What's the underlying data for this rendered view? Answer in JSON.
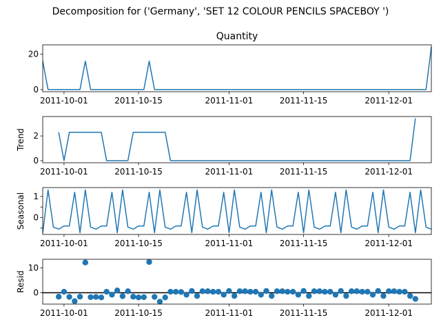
{
  "figure_title": "Decomposition for ('Germany', 'SET 12 COLOUR PENCILS SPACEBOY ')",
  "colors": {
    "series": "#1f77b4",
    "axis": "#000000",
    "zero_line": "#000000"
  },
  "chart_data": [
    {
      "type": "line",
      "title": "Quantity",
      "ylabel": "",
      "x_start": "2011-09-27",
      "x_end": "2011-12-09",
      "xlim": [
        "2011-09-27",
        "2011-12-09"
      ],
      "ylim": [
        -1.2,
        25.2
      ],
      "yticks": [
        0,
        20
      ],
      "xticks": [
        "2011-10-01",
        "2011-10-15",
        "2011-11-01",
        "2011-11-15",
        "2011-12-01"
      ],
      "grid": false,
      "values": [
        16,
        0,
        0,
        0,
        0,
        0,
        0,
        0,
        16,
        0,
        0,
        0,
        0,
        0,
        0,
        0,
        0,
        0,
        0,
        0,
        16,
        0,
        0,
        0,
        0,
        0,
        0,
        0,
        0,
        0,
        0,
        0,
        0,
        0,
        0,
        0,
        0,
        0,
        0,
        0,
        0,
        0,
        0,
        0,
        0,
        0,
        0,
        0,
        0,
        0,
        0,
        0,
        0,
        0,
        0,
        0,
        0,
        0,
        0,
        0,
        0,
        0,
        0,
        0,
        0,
        0,
        0,
        0,
        0,
        0,
        0,
        0,
        0,
        24
      ]
    },
    {
      "type": "line",
      "title": "",
      "ylabel": "Trend",
      "x_start": "2011-09-27",
      "x_end": "2011-12-09",
      "xlim": [
        "2011-09-27",
        "2011-12-09"
      ],
      "ylim": [
        -0.17,
        3.57
      ],
      "yticks": [
        0,
        2
      ],
      "xticks": [
        "2011-10-01",
        "2011-10-15",
        "2011-11-01",
        "2011-11-15",
        "2011-12-01"
      ],
      "grid": false,
      "values": [
        null,
        null,
        null,
        2.29,
        0,
        2.29,
        2.29,
        2.29,
        2.29,
        2.29,
        2.29,
        2.29,
        0,
        0,
        0,
        0,
        0,
        2.29,
        2.29,
        2.29,
        2.29,
        2.29,
        2.29,
        2.29,
        0,
        0,
        0,
        0,
        0,
        0,
        0,
        0,
        0,
        0,
        0,
        0,
        0,
        0,
        0,
        0,
        0,
        0,
        0,
        0,
        0,
        0,
        0,
        0,
        0,
        0,
        0,
        0,
        0,
        0,
        0,
        0,
        0,
        0,
        0,
        0,
        0,
        0,
        0,
        0,
        0,
        0,
        0,
        0,
        0,
        0,
        3.43,
        null,
        null,
        null
      ]
    },
    {
      "type": "line",
      "title": "",
      "ylabel": "Seasonal",
      "x_start": "2011-09-27",
      "x_end": "2011-12-09",
      "xlim": [
        "2011-09-27",
        "2011-12-09"
      ],
      "ylim": [
        -0.8,
        1.42
      ],
      "yticks": [
        -0.5,
        0,
        0.5,
        1
      ],
      "yticklabels": [
        "",
        "0",
        "",
        "1"
      ],
      "xticks": [
        "2011-10-01",
        "2011-10-15",
        "2011-11-01",
        "2011-11-15",
        "2011-12-01"
      ],
      "grid": false,
      "values": [
        -0.72,
        1.31,
        -0.45,
        -0.55,
        -0.4,
        -0.4,
        1.2,
        -0.72,
        1.31,
        -0.45,
        -0.55,
        -0.4,
        -0.4,
        1.2,
        -0.72,
        1.31,
        -0.45,
        -0.55,
        -0.4,
        -0.4,
        1.2,
        -0.72,
        1.31,
        -0.45,
        -0.55,
        -0.4,
        -0.4,
        1.2,
        -0.72,
        1.31,
        -0.45,
        -0.55,
        -0.4,
        -0.4,
        1.2,
        -0.72,
        1.31,
        -0.45,
        -0.55,
        -0.4,
        -0.4,
        1.2,
        -0.72,
        1.31,
        -0.45,
        -0.55,
        -0.4,
        -0.4,
        1.2,
        -0.72,
        1.31,
        -0.45,
        -0.55,
        -0.4,
        -0.4,
        1.2,
        -0.72,
        1.31,
        -0.45,
        -0.55,
        -0.4,
        -0.4,
        1.2,
        -0.72,
        1.31,
        -0.45,
        -0.55,
        -0.4,
        -0.4,
        1.2,
        -0.72,
        1.31,
        -0.45,
        -0.55
      ]
    },
    {
      "type": "scatter",
      "title": "",
      "ylabel": "Resid",
      "x_start": "2011-09-27",
      "x_end": "2011-12-09",
      "xlim": [
        "2011-09-27",
        "2011-12-09"
      ],
      "ylim": [
        -4.6,
        13.5
      ],
      "yticks": [
        0,
        10
      ],
      "xticks": [
        "2011-10-01",
        "2011-10-15",
        "2011-11-01",
        "2011-11-15",
        "2011-12-01"
      ],
      "grid": false,
      "zero_line": true,
      "values": [
        null,
        null,
        null,
        -1.6,
        0.4,
        -1.7,
        -3.4,
        -1.6,
        12.2,
        -1.8,
        -1.7,
        -1.9,
        0.4,
        -0.8,
        0.9,
        -1.4,
        0.6,
        -1.6,
        -1.9,
        -1.8,
        12.4,
        -1.7,
        -3.6,
        -1.9,
        0.4,
        0.4,
        0.3,
        -0.8,
        0.7,
        -1.3,
        0.6,
        0.6,
        0.4,
        0.4,
        -0.8,
        0.7,
        -1.3,
        0.6,
        0.6,
        0.4,
        0.4,
        -0.8,
        0.7,
        -1.3,
        0.6,
        0.6,
        0.4,
        0.4,
        -0.8,
        0.7,
        -1.3,
        0.6,
        0.6,
        0.4,
        0.4,
        -0.8,
        0.7,
        -1.3,
        0.6,
        0.6,
        0.4,
        0.4,
        -0.8,
        0.7,
        -1.3,
        0.6,
        0.6,
        0.4,
        0.4,
        -1.3,
        -2.5,
        null,
        null,
        null
      ]
    }
  ]
}
